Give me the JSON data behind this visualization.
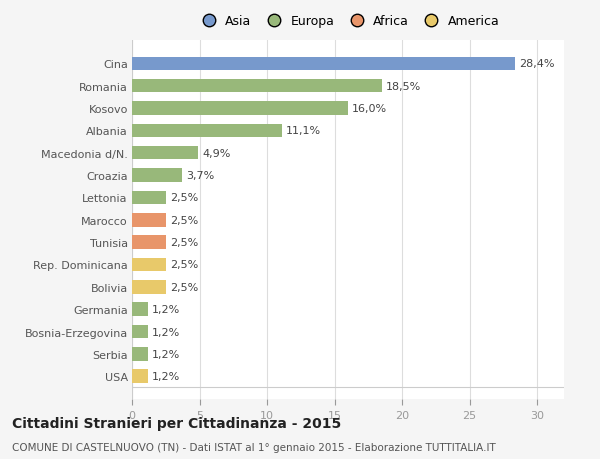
{
  "categories": [
    "USA",
    "Serbia",
    "Bosnia-Erzegovina",
    "Germania",
    "Bolivia",
    "Rep. Dominicana",
    "Tunisia",
    "Marocco",
    "Lettonia",
    "Croazia",
    "Macedonia d/N.",
    "Albania",
    "Kosovo",
    "Romania",
    "Cina"
  ],
  "values": [
    1.2,
    1.2,
    1.2,
    1.2,
    2.5,
    2.5,
    2.5,
    2.5,
    2.5,
    3.7,
    4.9,
    11.1,
    16.0,
    18.5,
    28.4
  ],
  "colors": [
    "#e8c96a",
    "#98b87a",
    "#98b87a",
    "#98b87a",
    "#e8c96a",
    "#e8c96a",
    "#e8956a",
    "#e8956a",
    "#98b87a",
    "#98b87a",
    "#98b87a",
    "#98b87a",
    "#98b87a",
    "#98b87a",
    "#7799cc"
  ],
  "labels": [
    "1,2%",
    "1,2%",
    "1,2%",
    "1,2%",
    "2,5%",
    "2,5%",
    "2,5%",
    "2,5%",
    "2,5%",
    "3,7%",
    "4,9%",
    "11,1%",
    "16,0%",
    "18,5%",
    "28,4%"
  ],
  "legend_labels": [
    "Asia",
    "Europa",
    "Africa",
    "America"
  ],
  "legend_colors": [
    "#7799cc",
    "#98b87a",
    "#e8956a",
    "#e8c96a"
  ],
  "title": "Cittadini Stranieri per Cittadinanza - 2015",
  "subtitle": "COMUNE DI CASTELNUOVO (TN) - Dati ISTAT al 1° gennaio 2015 - Elaborazione TUTTITALIA.IT",
  "xlim": [
    0,
    32
  ],
  "xticks": [
    0,
    5,
    10,
    15,
    20,
    25,
    30
  ],
  "bg_color": "#f5f5f5",
  "bar_bg_color": "#ffffff",
  "bar_height": 0.6,
  "label_fontsize": 8.0,
  "ytick_fontsize": 8.0,
  "xtick_fontsize": 8.0,
  "legend_fontsize": 9.0,
  "title_fontsize": 10.0,
  "subtitle_fontsize": 7.5
}
